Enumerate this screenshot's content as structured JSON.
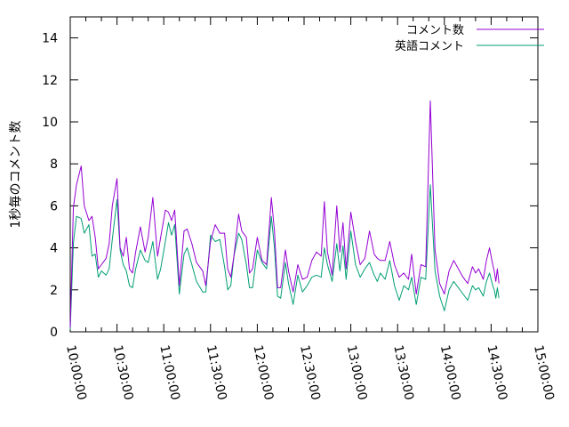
{
  "chart_data": {
    "type": "line",
    "ylabel": "1秒毎のコメント数",
    "xlabel": "",
    "ylim": [
      0,
      15
    ],
    "yticks": [
      0,
      2,
      4,
      6,
      8,
      10,
      12,
      14
    ],
    "x_range_seconds": [
      0,
      18000
    ],
    "xtick_labels": [
      "10:00:00",
      "10:30:00",
      "11:00:00",
      "11:30:00",
      "12:00:00",
      "12:30:00",
      "13:00:00",
      "13:30:00",
      "14:00:00",
      "14:30:00",
      "15:00:00"
    ],
    "grid": false,
    "legend_position": "top-right",
    "series": [
      {
        "name": "コメント数",
        "color": "#9400d3",
        "x": [
          0,
          120,
          240,
          420,
          540,
          720,
          840,
          960,
          1080,
          1200,
          1380,
          1500,
          1620,
          1800,
          1920,
          2040,
          2160,
          2280,
          2400,
          2520,
          2700,
          2880,
          3000,
          3180,
          3360,
          3480,
          3660,
          3780,
          3900,
          4020,
          4200,
          4380,
          4500,
          4680,
          4860,
          5100,
          5220,
          5400,
          5580,
          5760,
          5940,
          6060,
          6180,
          6300,
          6480,
          6600,
          6780,
          6900,
          7020,
          7200,
          7380,
          7560,
          7740,
          7860,
          7980,
          8100,
          8280,
          8400,
          8580,
          8760,
          8940,
          9120,
          9300,
          9480,
          9660,
          9780,
          9900,
          10080,
          10260,
          10380,
          10500,
          10620,
          10800,
          10980,
          11160,
          11340,
          11520,
          11700,
          11820,
          11940,
          12120,
          12300,
          12480,
          12660,
          12840,
          13020,
          13140,
          13320,
          13500,
          13680,
          13860,
          14040,
          14220,
          14400,
          14580,
          14760,
          14940,
          15120,
          15300,
          15480,
          15600,
          15720,
          15900,
          16020,
          16140,
          16260,
          16320,
          16380,
          16440,
          16500
        ],
        "values": [
          0.2,
          5.9,
          7.0,
          7.9,
          6.0,
          5.3,
          5.5,
          4.5,
          3.0,
          3.2,
          3.5,
          4.2,
          6.0,
          7.3,
          4.0,
          3.6,
          4.5,
          3.0,
          2.8,
          3.8,
          5.0,
          3.8,
          4.5,
          6.4,
          3.6,
          4.5,
          5.8,
          5.7,
          5.3,
          5.8,
          2.2,
          4.8,
          4.9,
          4.2,
          3.3,
          2.9,
          2.2,
          4.3,
          5.1,
          4.7,
          4.7,
          3.0,
          2.6,
          3.6,
          5.6,
          4.8,
          4.5,
          2.8,
          3.0,
          4.5,
          3.4,
          3.2,
          6.4,
          4.8,
          2.1,
          2.1,
          3.9,
          2.9,
          1.9,
          3.2,
          2.5,
          2.6,
          3.4,
          3.8,
          3.6,
          6.2,
          3.8,
          2.7,
          6.0,
          3.8,
          5.2,
          3.0,
          5.7,
          4.3,
          3.2,
          3.5,
          4.8,
          3.7,
          3.5,
          3.4,
          3.4,
          4.3,
          3.2,
          2.6,
          2.8,
          2.5,
          3.7,
          1.8,
          3.2,
          3.1,
          11.0,
          3.9,
          2.3,
          1.8,
          2.9,
          3.4,
          3.0,
          2.6,
          2.3,
          3.1,
          2.8,
          3.0,
          2.5,
          3.4,
          4.0,
          3.2,
          2.9,
          2.4,
          3.0,
          2.3
        ],
        "display_note": ""
      },
      {
        "name": "英語コメント",
        "color": "#009e73",
        "x": [
          0,
          120,
          240,
          420,
          540,
          720,
          840,
          960,
          1080,
          1200,
          1380,
          1500,
          1620,
          1800,
          1920,
          2040,
          2160,
          2280,
          2400,
          2520,
          2700,
          2880,
          3000,
          3180,
          3360,
          3480,
          3660,
          3780,
          3900,
          4020,
          4200,
          4380,
          4500,
          4680,
          4860,
          5100,
          5220,
          5400,
          5580,
          5760,
          5940,
          6060,
          6180,
          6300,
          6480,
          6600,
          6780,
          6900,
          7020,
          7200,
          7380,
          7560,
          7740,
          7860,
          7980,
          8100,
          8280,
          8400,
          8580,
          8760,
          8940,
          9120,
          9300,
          9480,
          9660,
          9780,
          9900,
          10080,
          10260,
          10380,
          10500,
          10620,
          10800,
          10980,
          11160,
          11340,
          11520,
          11700,
          11820,
          11940,
          12120,
          12300,
          12480,
          12660,
          12840,
          13020,
          13140,
          13320,
          13500,
          13680,
          13860,
          14040,
          14220,
          14400,
          14580,
          14760,
          14940,
          15120,
          15300,
          15480,
          15600,
          15720,
          15900,
          16020,
          16140,
          16260,
          16320,
          16380,
          16440,
          16500
        ],
        "values": [
          0.1,
          4.2,
          5.5,
          5.4,
          4.7,
          5.1,
          3.6,
          3.7,
          2.6,
          2.9,
          2.7,
          3.0,
          4.4,
          6.3,
          3.9,
          3.2,
          2.9,
          2.2,
          2.1,
          3.0,
          3.9,
          3.4,
          3.3,
          4.3,
          2.5,
          3.0,
          4.3,
          5.2,
          4.6,
          5.1,
          1.8,
          3.7,
          4.0,
          3.2,
          2.4,
          1.9,
          1.9,
          4.6,
          4.3,
          4.4,
          3.1,
          2.0,
          2.2,
          3.6,
          4.7,
          4.4,
          3.2,
          2.1,
          2.1,
          3.9,
          3.3,
          3.0,
          5.5,
          4.0,
          1.7,
          1.6,
          3.3,
          2.3,
          1.3,
          2.7,
          1.9,
          2.2,
          2.6,
          2.7,
          2.6,
          4.0,
          3.2,
          2.4,
          4.2,
          2.9,
          4.1,
          2.5,
          4.8,
          3.2,
          2.6,
          3.0,
          3.3,
          2.7,
          2.4,
          2.8,
          2.5,
          3.4,
          2.2,
          1.5,
          2.2,
          2.0,
          2.6,
          1.3,
          2.6,
          2.5,
          7.0,
          2.9,
          1.7,
          1.0,
          2.0,
          2.4,
          2.1,
          1.8,
          1.5,
          2.2,
          2.0,
          2.1,
          1.7,
          2.4,
          2.8,
          2.2,
          2.0,
          1.6,
          2.1,
          1.6
        ]
      }
    ]
  }
}
